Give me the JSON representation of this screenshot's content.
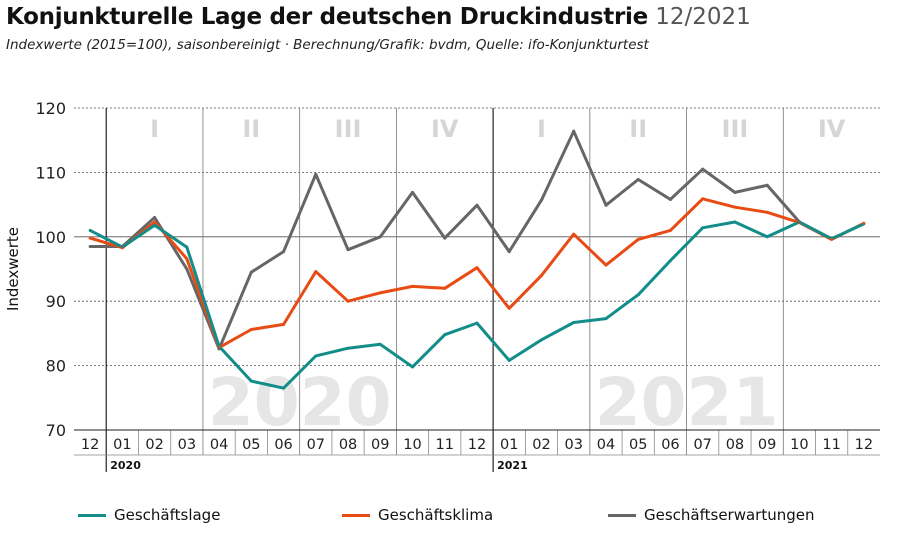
{
  "header": {
    "title": "Konjunkturelle Lage der deutschen Druckindustrie",
    "date": "12/2021",
    "subtitle": "Indexwerte (2015=100), saisonbereinigt · Berechnung/Grafik: bvdm, Quelle: ifo-Konjunkturtest"
  },
  "chart_data": {
    "type": "line",
    "title": "Konjunkturelle Lage der deutschen Druckindustrie",
    "ylabel": "Indexwerte",
    "ylim": [
      70,
      120
    ],
    "yticks": [
      "70",
      "80",
      "90",
      "100",
      "110",
      "120"
    ],
    "categories": [
      "12",
      "01",
      "02",
      "03",
      "04",
      "05",
      "06",
      "07",
      "08",
      "09",
      "10",
      "11",
      "12",
      "01",
      "02",
      "03",
      "04",
      "05",
      "06",
      "07",
      "08",
      "09",
      "10",
      "11",
      "12"
    ],
    "year_labels": [
      {
        "label": "2020",
        "index": 1
      },
      {
        "label": "2021",
        "index": 13
      }
    ],
    "year_watermarks": [
      {
        "label": "2020",
        "from": 1,
        "to": 12
      },
      {
        "label": "2021",
        "from": 13,
        "to": 24
      }
    ],
    "quarters": [
      {
        "label": "I",
        "from": 1,
        "to": 3
      },
      {
        "label": "II",
        "from": 4,
        "to": 6
      },
      {
        "label": "III",
        "from": 7,
        "to": 9
      },
      {
        "label": "IV",
        "from": 10,
        "to": 12
      },
      {
        "label": "I",
        "from": 13,
        "to": 15
      },
      {
        "label": "II",
        "from": 16,
        "to": 18
      },
      {
        "label": "III",
        "from": 19,
        "to": 21
      },
      {
        "label": "IV",
        "from": 22,
        "to": 24
      }
    ],
    "grid": true,
    "legend_position": "bottom",
    "series": [
      {
        "name": "Geschäftslage",
        "color": "#138d8a",
        "values": [
          101.0,
          98.4,
          101.8,
          98.4,
          83.0,
          77.6,
          76.5,
          81.5,
          82.7,
          83.3,
          79.8,
          84.8,
          86.6,
          80.8,
          84.0,
          86.7,
          87.3,
          91.0,
          96.3,
          101.4,
          102.3,
          100.0,
          102.3,
          99.7,
          102.0
        ]
      },
      {
        "name": "Geschäftsklima",
        "color": "#e84b13",
        "values": [
          99.8,
          98.3,
          102.3,
          96.6,
          82.8,
          85.6,
          86.4,
          94.6,
          90.0,
          91.3,
          92.3,
          92.0,
          95.2,
          88.9,
          94.0,
          100.4,
          95.6,
          99.6,
          101.0,
          105.9,
          104.6,
          103.8,
          102.2,
          99.6,
          102.1
        ]
      },
      {
        "name": "Geschäftserwartungen",
        "color": "#666666",
        "values": [
          98.5,
          98.5,
          103.0,
          95.0,
          82.6,
          94.5,
          97.7,
          109.7,
          98.0,
          100.0,
          106.9,
          99.8,
          104.9,
          97.7,
          105.7,
          116.4,
          104.9,
          108.9,
          105.8,
          110.5,
          106.9,
          108.0,
          102.3,
          null,
          null
        ]
      }
    ]
  }
}
